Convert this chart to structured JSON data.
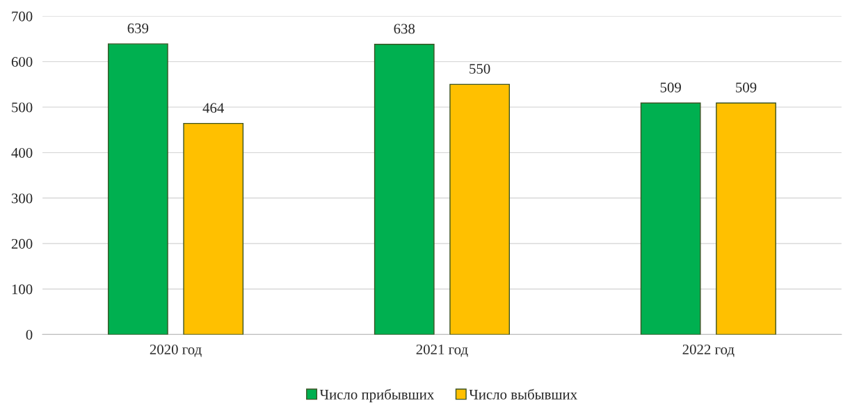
{
  "chart_data": {
    "type": "bar",
    "categories": [
      "2020 год",
      "2021 год",
      "2022 год"
    ],
    "series": [
      {
        "name": "Число прибывших",
        "color": "#00b050",
        "values": [
          639,
          638,
          509
        ]
      },
      {
        "name": "Число выбывших",
        "color": "#ffc000",
        "values": [
          464,
          550,
          509
        ]
      }
    ],
    "ylim": [
      0,
      700
    ],
    "yticks": [
      0,
      100,
      200,
      300,
      400,
      500,
      600,
      700
    ],
    "grid": "y",
    "legend": "bottom",
    "data_labels": true
  }
}
